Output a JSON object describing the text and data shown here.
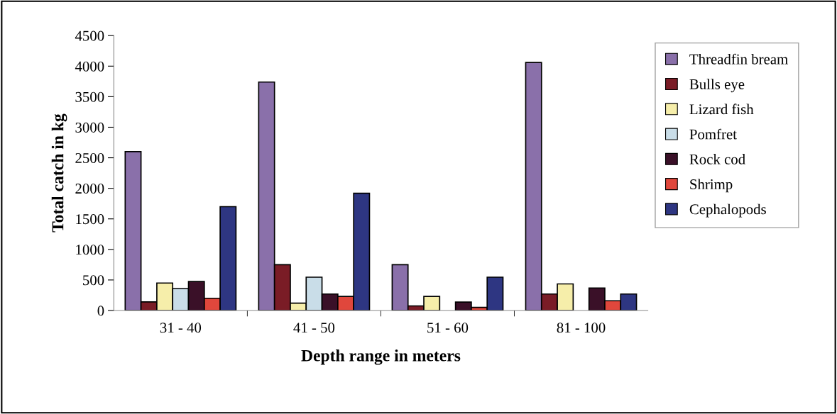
{
  "chart_data": {
    "type": "bar",
    "xlabel": "Depth range in meters",
    "ylabel": "Total catch in kg",
    "categories": [
      "31 - 40",
      "41 - 50",
      "51 - 60",
      "81 - 100"
    ],
    "series": [
      {
        "name": "Threadfin bream",
        "color": "#8a70aa",
        "values": [
          2600,
          3740,
          750,
          4060
        ]
      },
      {
        "name": "Bulls eye",
        "color": "#7a1c26",
        "values": [
          140,
          750,
          75,
          270
        ]
      },
      {
        "name": "Lizard fish",
        "color": "#f6eeaa",
        "values": [
          450,
          120,
          230,
          435
        ]
      },
      {
        "name": "Pomfret",
        "color": "#c9dde8",
        "values": [
          360,
          545,
          null,
          null
        ]
      },
      {
        "name": "Rock cod",
        "color": "#3a1028",
        "values": [
          475,
          270,
          137,
          368
        ]
      },
      {
        "name": "Shrimp",
        "color": "#e0473c",
        "values": [
          200,
          230,
          50,
          160
        ]
      },
      {
        "name": "Cephalopods",
        "color": "#2e3682",
        "values": [
          1700,
          1920,
          545,
          270
        ]
      }
    ],
    "ylim": [
      0,
      4500
    ],
    "yticks": [
      0,
      500,
      1000,
      1500,
      2000,
      2500,
      3000,
      3500,
      4000,
      4500
    ],
    "grid": false,
    "legend": "right"
  }
}
